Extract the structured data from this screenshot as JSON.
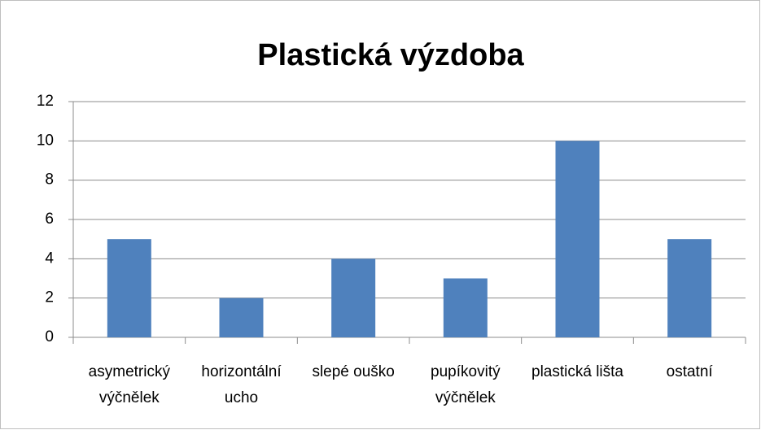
{
  "chart_data": {
    "type": "bar",
    "title": "Plastická výzdoba",
    "categories": [
      "asymetrický výčnělek",
      "horizontální ucho",
      "slepé ouško",
      "pupíkovitý výčnělek",
      "plastická lišta",
      "ostatní"
    ],
    "values": [
      5,
      2,
      4,
      3,
      10,
      5
    ],
    "color": "#4f81bd",
    "ylim": [
      0,
      12
    ],
    "yticks": [
      0,
      2,
      4,
      6,
      8,
      10,
      12
    ],
    "grid": true
  }
}
